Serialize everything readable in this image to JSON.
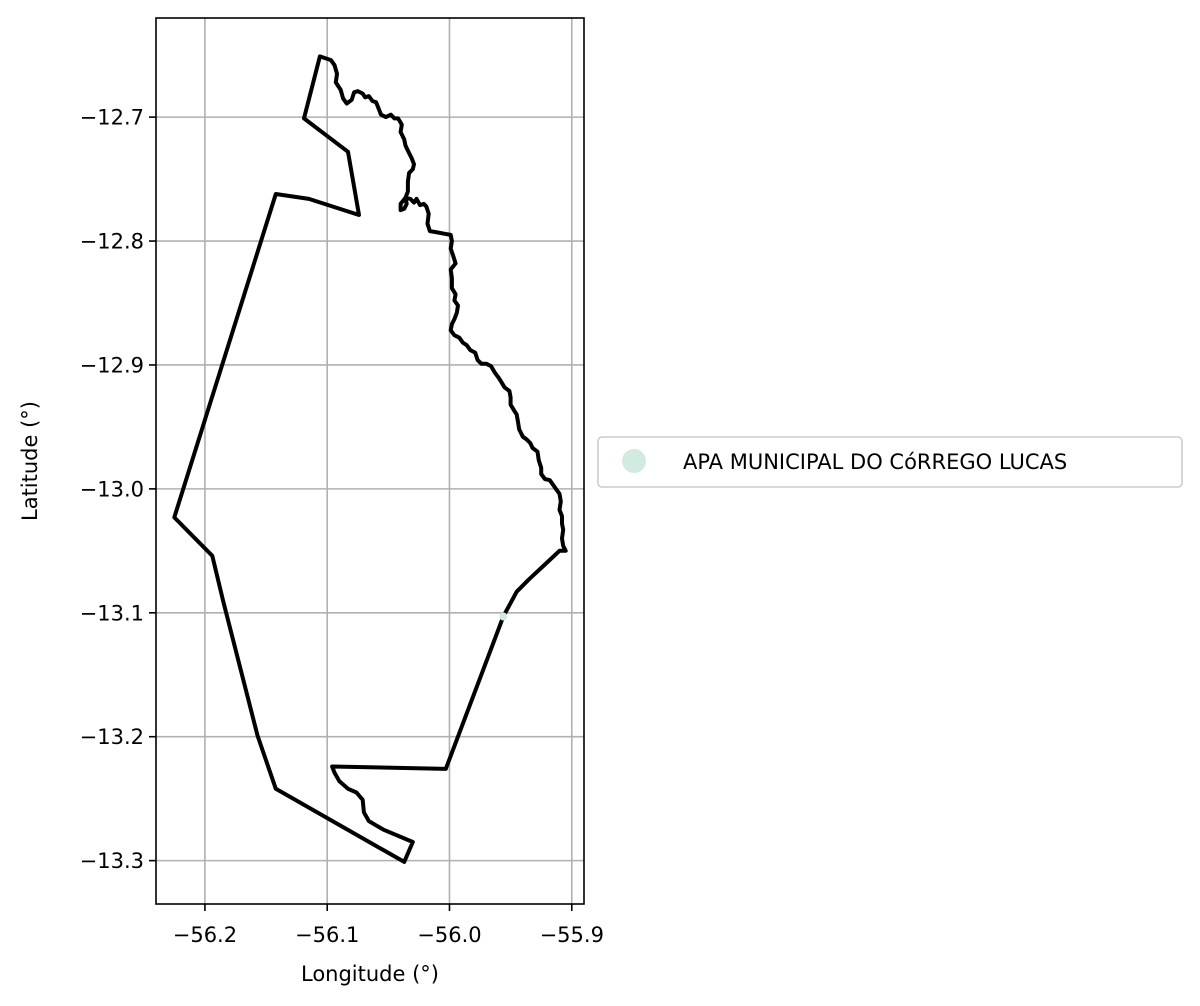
{
  "chart_data": {
    "type": "map",
    "xlabel": "Longitude (°)",
    "ylabel": "Latitude (°)",
    "xlim": [
      -56.24,
      -55.89
    ],
    "ylim": [
      -13.335,
      -12.62
    ],
    "x_ticks": [
      -56.2,
      -56.1,
      -56.0,
      -55.9
    ],
    "x_tick_labels": [
      "−56.2",
      "−56.1",
      "−56.0",
      "−55.9"
    ],
    "y_ticks": [
      -12.7,
      -12.8,
      -12.9,
      -13.0,
      -13.1,
      -13.2,
      -13.3
    ],
    "y_tick_labels": [
      "−12.7",
      "−12.8",
      "−12.9",
      "−13.0",
      "−13.1",
      "−13.2",
      "−13.3"
    ],
    "grid": true,
    "legend_placement": "right-center",
    "series": [
      {
        "name": "APA MUNICIPAL DO CóRREGO LUCAS",
        "marker_color": "#d2ebe0",
        "outline_color": "#000000",
        "boundary": [
          [
            -56.106,
            -12.651
          ],
          [
            -56.097,
            -12.654
          ],
          [
            -56.094,
            -12.658
          ],
          [
            -56.092,
            -12.665
          ],
          [
            -56.093,
            -12.672
          ],
          [
            -56.089,
            -12.678
          ],
          [
            -56.087,
            -12.685
          ],
          [
            -56.084,
            -12.689
          ],
          [
            -56.08,
            -12.686
          ],
          [
            -56.078,
            -12.68
          ],
          [
            -56.075,
            -12.679
          ],
          [
            -56.071,
            -12.681
          ],
          [
            -56.069,
            -12.684
          ],
          [
            -56.066,
            -12.683
          ],
          [
            -56.063,
            -12.687
          ],
          [
            -56.06,
            -12.688
          ],
          [
            -56.058,
            -12.693
          ],
          [
            -56.056,
            -12.698
          ],
          [
            -56.052,
            -12.7
          ],
          [
            -56.048,
            -12.698
          ],
          [
            -56.045,
            -12.701
          ],
          [
            -56.042,
            -12.701
          ],
          [
            -56.039,
            -12.706
          ],
          [
            -56.04,
            -12.712
          ],
          [
            -56.037,
            -12.718
          ],
          [
            -56.036,
            -12.723
          ],
          [
            -56.033,
            -12.729
          ],
          [
            -56.031,
            -12.733
          ],
          [
            -56.029,
            -12.738
          ],
          [
            -56.03,
            -12.742
          ],
          [
            -56.033,
            -12.745
          ],
          [
            -56.034,
            -12.752
          ],
          [
            -56.034,
            -12.76
          ],
          [
            -56.036,
            -12.765
          ],
          [
            -56.035,
            -12.77
          ],
          [
            -56.037,
            -12.774
          ],
          [
            -56.04,
            -12.775
          ],
          [
            -56.04,
            -12.77
          ],
          [
            -56.036,
            -12.765
          ],
          [
            -56.032,
            -12.766
          ],
          [
            -56.029,
            -12.769
          ],
          [
            -56.027,
            -12.766
          ],
          [
            -56.024,
            -12.771
          ],
          [
            -56.021,
            -12.77
          ],
          [
            -56.019,
            -12.772
          ],
          [
            -56.017,
            -12.778
          ],
          [
            -56.018,
            -12.786
          ],
          [
            -56.016,
            -12.792
          ],
          [
            -56.01,
            -12.793
          ],
          [
            -56.005,
            -12.794
          ],
          [
            -55.999,
            -12.795
          ],
          [
            -55.998,
            -12.8
          ],
          [
            -55.999,
            -12.806
          ],
          [
            -55.997,
            -12.812
          ],
          [
            -55.995,
            -12.818
          ],
          [
            -55.999,
            -12.823
          ],
          [
            -55.998,
            -12.83
          ],
          [
            -55.998,
            -12.838
          ],
          [
            -55.995,
            -12.843
          ],
          [
            -55.996,
            -12.848
          ],
          [
            -55.993,
            -12.852
          ],
          [
            -55.994,
            -12.858
          ],
          [
            -55.996,
            -12.863
          ],
          [
            -55.998,
            -12.867
          ],
          [
            -55.999,
            -12.872
          ],
          [
            -55.996,
            -12.876
          ],
          [
            -55.992,
            -12.878
          ],
          [
            -55.989,
            -12.882
          ],
          [
            -55.986,
            -12.884
          ],
          [
            -55.983,
            -12.888
          ],
          [
            -55.979,
            -12.89
          ],
          [
            -55.977,
            -12.896
          ],
          [
            -55.974,
            -12.899
          ],
          [
            -55.97,
            -12.899
          ],
          [
            -55.966,
            -12.901
          ],
          [
            -55.963,
            -12.906
          ],
          [
            -55.96,
            -12.91
          ],
          [
            -55.958,
            -12.913
          ],
          [
            -55.955,
            -12.918
          ],
          [
            -55.951,
            -12.921
          ],
          [
            -55.95,
            -12.926
          ],
          [
            -55.95,
            -12.932
          ],
          [
            -55.947,
            -12.937
          ],
          [
            -55.945,
            -12.94
          ],
          [
            -55.944,
            -12.946
          ],
          [
            -55.943,
            -12.952
          ],
          [
            -55.94,
            -12.958
          ],
          [
            -55.937,
            -12.96
          ],
          [
            -55.934,
            -12.963
          ],
          [
            -55.932,
            -12.967
          ],
          [
            -55.928,
            -12.97
          ],
          [
            -55.927,
            -12.977
          ],
          [
            -55.925,
            -12.983
          ],
          [
            -55.925,
            -12.988
          ],
          [
            -55.922,
            -12.992
          ],
          [
            -55.918,
            -12.993
          ],
          [
            -55.913,
            -13.0
          ],
          [
            -55.91,
            -13.004
          ],
          [
            -55.909,
            -13.01
          ],
          [
            -55.91,
            -13.017
          ],
          [
            -55.908,
            -13.022
          ],
          [
            -55.908,
            -13.028
          ],
          [
            -55.907,
            -13.033
          ],
          [
            -55.908,
            -13.04
          ],
          [
            -55.907,
            -13.046
          ],
          [
            -55.905,
            -13.05
          ],
          [
            -55.91,
            -13.05
          ],
          [
            -55.922,
            -13.061
          ],
          [
            -55.935,
            -13.073
          ],
          [
            -55.945,
            -13.083
          ],
          [
            -55.956,
            -13.103
          ],
          [
            -56.003,
            -13.226
          ],
          [
            -56.096,
            -13.224
          ],
          [
            -56.094,
            -13.229
          ],
          [
            -56.09,
            -13.236
          ],
          [
            -56.083,
            -13.242
          ],
          [
            -56.076,
            -13.245
          ],
          [
            -56.071,
            -13.251
          ],
          [
            -56.07,
            -13.261
          ],
          [
            -56.066,
            -13.268
          ],
          [
            -56.061,
            -13.271
          ],
          [
            -56.054,
            -13.275
          ],
          [
            -56.03,
            -13.285
          ],
          [
            -56.037,
            -13.301
          ],
          [
            -56.142,
            -13.242
          ],
          [
            -56.157,
            -13.199
          ],
          [
            -56.185,
            -13.091
          ],
          [
            -56.194,
            -13.054
          ],
          [
            -56.225,
            -13.023
          ],
          [
            -56.142,
            -12.762
          ],
          [
            -56.115,
            -12.766
          ],
          [
            -56.074,
            -12.779
          ],
          [
            -56.083,
            -12.728
          ],
          [
            -56.119,
            -12.701
          ],
          [
            -56.106,
            -12.651
          ]
        ],
        "legend_marker_point": [
          -55.956,
          -13.103
        ]
      }
    ]
  }
}
